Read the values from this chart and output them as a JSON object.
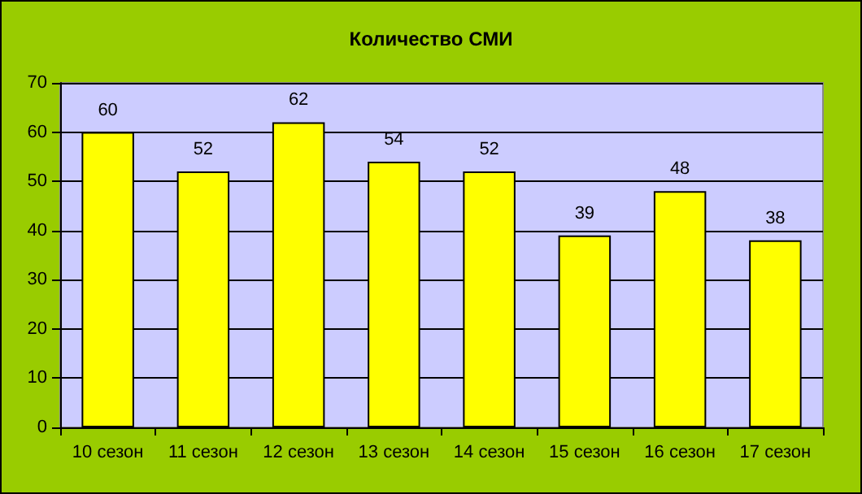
{
  "chart_data": {
    "type": "bar",
    "title": "Количество СМИ",
    "categories": [
      "10 сезон",
      "11 сезон",
      "12 сезон",
      "13 сезон",
      "14 сезон",
      "15 сезон",
      "16 сезон",
      "17 сезон"
    ],
    "values": [
      60,
      52,
      62,
      54,
      52,
      39,
      48,
      38
    ],
    "color": "#ffff00",
    "ylim": [
      0,
      70
    ],
    "yticks": [
      0,
      10,
      20,
      30,
      40,
      50,
      60,
      70
    ],
    "grid": "y",
    "data_labels": true
  }
}
